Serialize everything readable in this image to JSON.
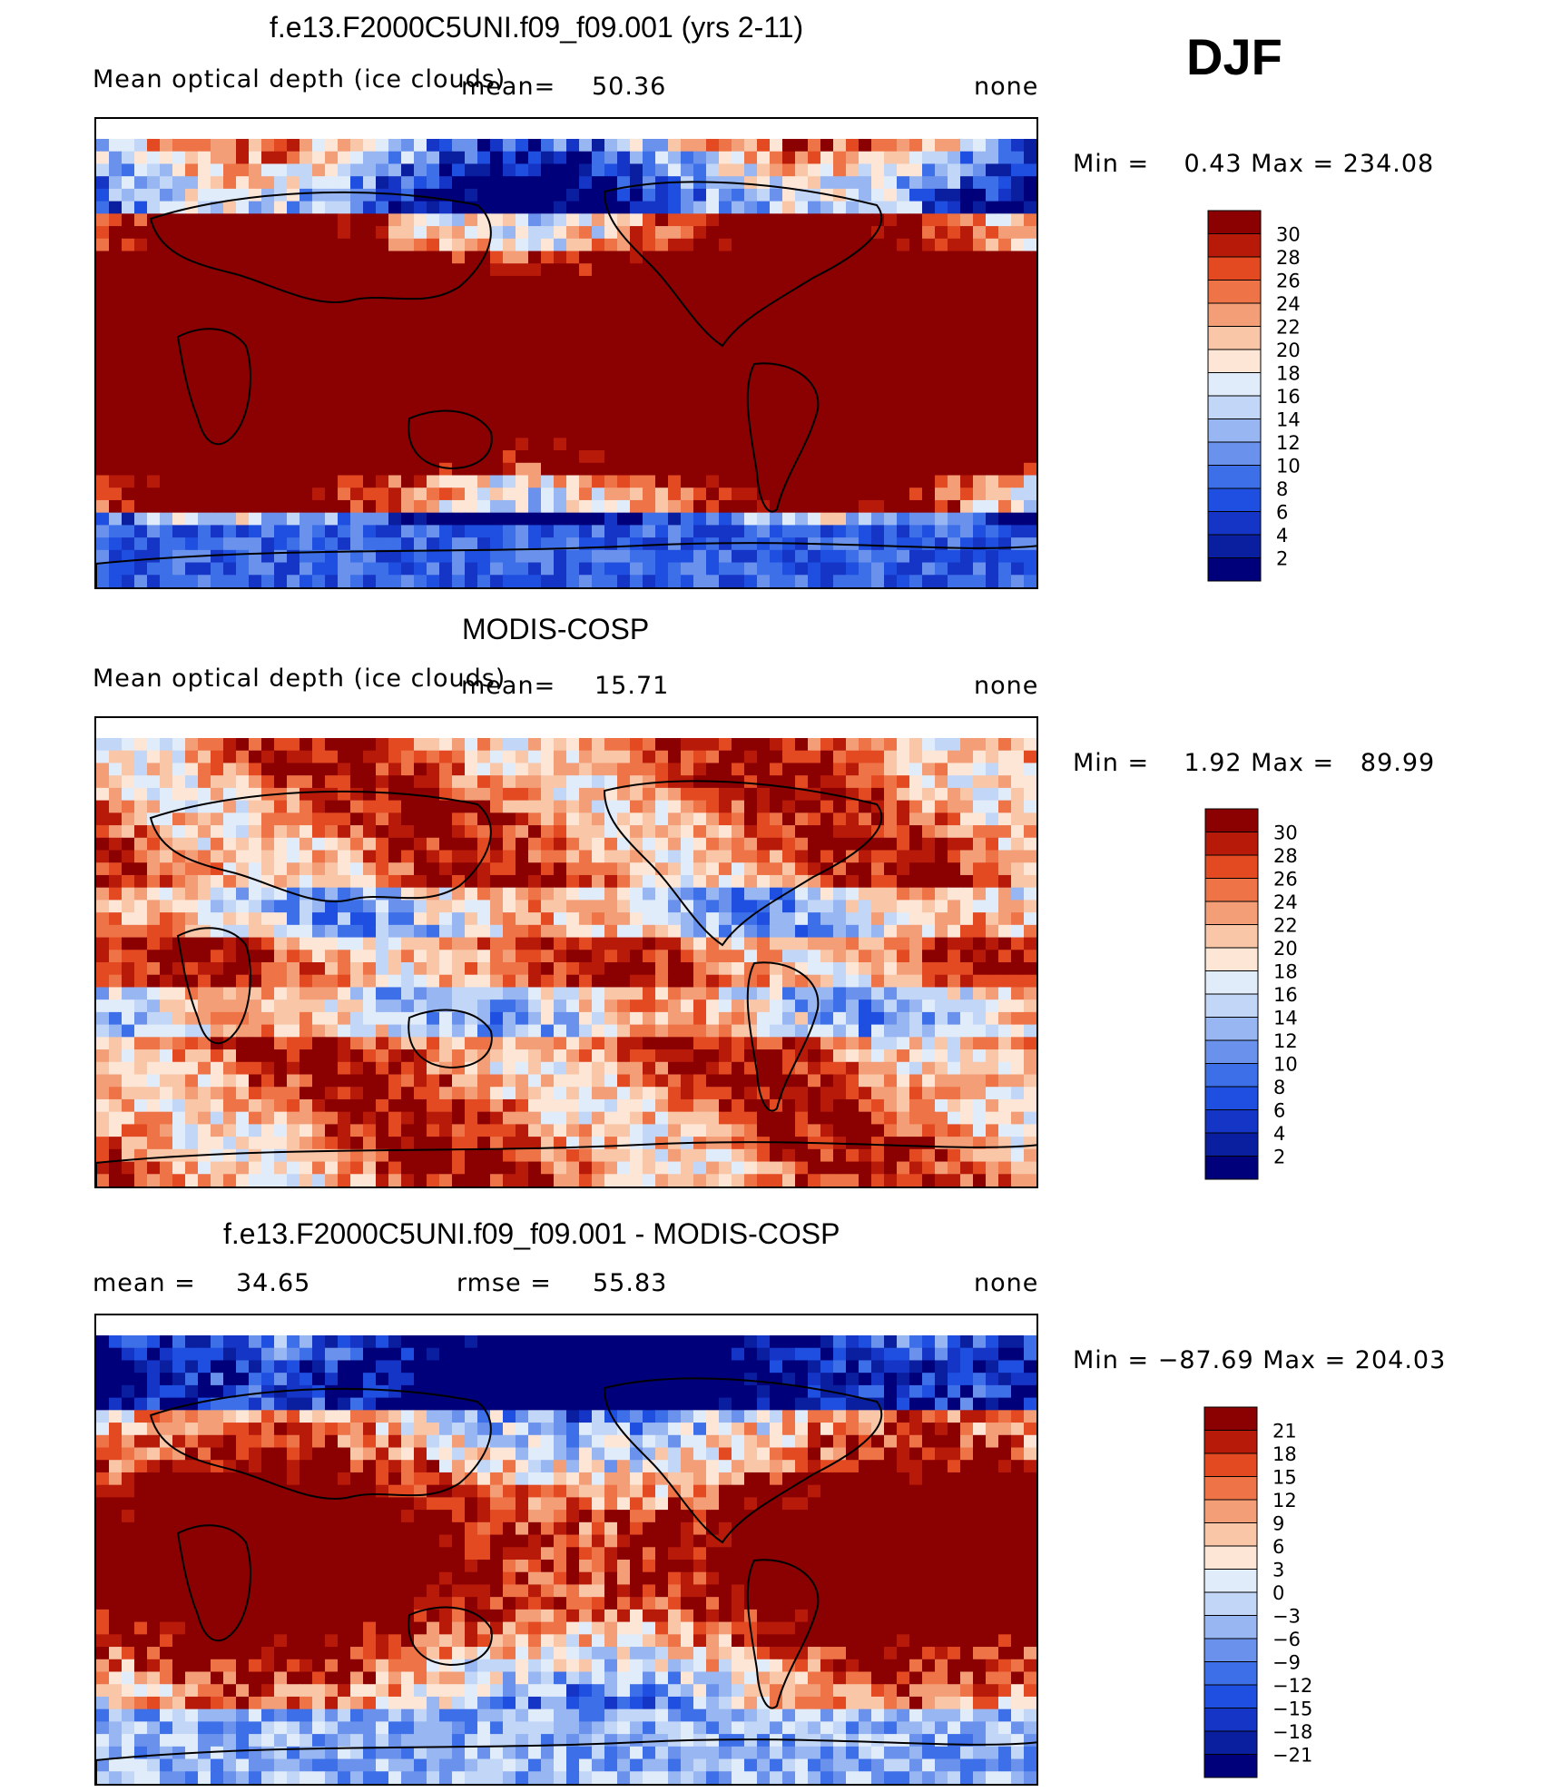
{
  "season": "DJF",
  "panels": [
    {
      "title": "f.e13.F2000C5UNI.f09_f09.001 (yrs 2-11)",
      "variable": "Mean optical depth (ice clouds)",
      "mean_label": "mean=",
      "mean_value": "50.36",
      "units": "none",
      "minmax": "Min =    0.43 Max = 234.08",
      "colorbar_labels": [
        "30",
        "28",
        "26",
        "24",
        "22",
        "20",
        "18",
        "16",
        "14",
        "12",
        "10",
        "8",
        "6",
        "4",
        "2"
      ]
    },
    {
      "title": "MODIS-COSP",
      "variable": "Mean optical depth (ice clouds)",
      "mean_label": "mean=",
      "mean_value": "15.71",
      "units": "none",
      "minmax": "Min =    1.92 Max =   89.99",
      "colorbar_labels": [
        "30",
        "28",
        "26",
        "24",
        "22",
        "20",
        "18",
        "16",
        "14",
        "12",
        "10",
        "8",
        "6",
        "4",
        "2"
      ]
    },
    {
      "title": "f.e13.F2000C5UNI.f09_f09.001 - MODIS-COSP",
      "mean_label": "mean =",
      "mean_value": "34.65",
      "rmse_label": "rmse =",
      "rmse_value": "55.83",
      "units": "none",
      "minmax": "Min = −87.69 Max = 204.03",
      "colorbar_labels": [
        "21",
        "18",
        "15",
        "12",
        "9",
        "6",
        "3",
        "0",
        "−3",
        "−6",
        "−9",
        "−12",
        "−15",
        "−18",
        "−21"
      ]
    }
  ],
  "colors": {
    "scale": [
      "#00007a",
      "#0a1fa0",
      "#1535c6",
      "#1e4fe0",
      "#3d6fe8",
      "#6a92ec",
      "#97b6f2",
      "#c2d6f7",
      "#e1ecfa",
      "#fde6d6",
      "#f9c6a8",
      "#f49e78",
      "#ee7448",
      "#e44a22",
      "#b81a0a",
      "#8b0000"
    ],
    "ocean_high": "#8b0000",
    "ocean_low": "#0a1fa0",
    "coast": "#000000"
  },
  "chart_data": [
    {
      "type": "heatmap",
      "title": "f.e13.F2000C5UNI.f09_f09.001 (yrs 2-11)",
      "variable": "Mean optical depth (ice clouds)",
      "units": "none",
      "levels": [
        2,
        4,
        6,
        8,
        10,
        12,
        14,
        16,
        18,
        20,
        22,
        24,
        26,
        28,
        30
      ],
      "min": 0.43,
      "max": 234.08,
      "mean": 50.36
    },
    {
      "type": "heatmap",
      "title": "MODIS-COSP",
      "variable": "Mean optical depth (ice clouds)",
      "units": "none",
      "levels": [
        2,
        4,
        6,
        8,
        10,
        12,
        14,
        16,
        18,
        20,
        22,
        24,
        26,
        28,
        30
      ],
      "min": 1.92,
      "max": 89.99,
      "mean": 15.71
    },
    {
      "type": "heatmap",
      "title": "f.e13.F2000C5UNI.f09_f09.001 - MODIS-COSP",
      "units": "none",
      "levels": [
        -21,
        -18,
        -15,
        -12,
        -9,
        -6,
        -3,
        0,
        3,
        6,
        9,
        12,
        15,
        18,
        21
      ],
      "min": -87.69,
      "max": 204.03,
      "mean": 34.65,
      "rmse": 55.83
    }
  ]
}
